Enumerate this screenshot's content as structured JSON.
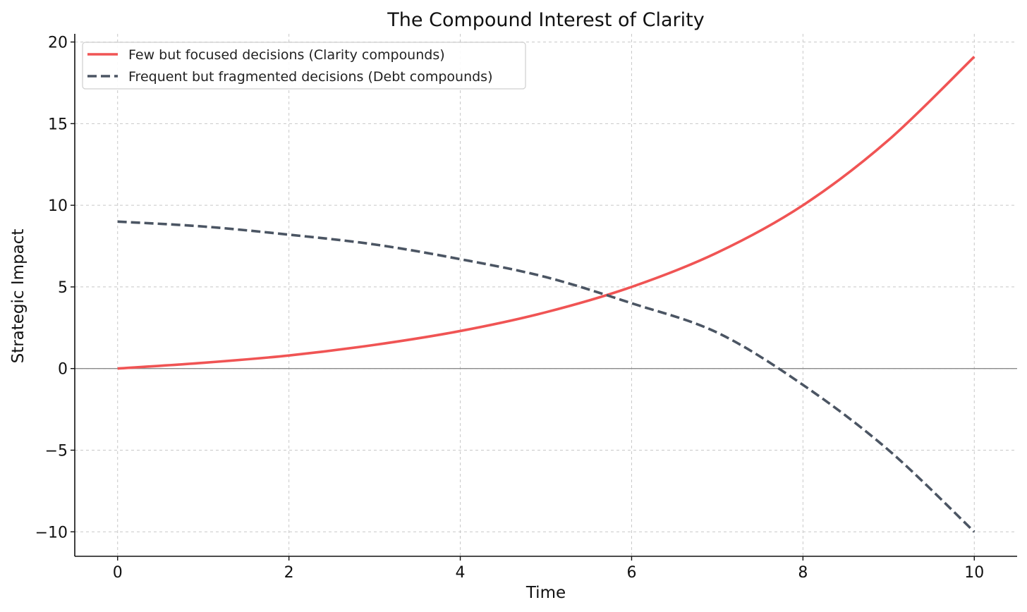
{
  "chart_data": {
    "type": "line",
    "title": "The Compound Interest of Clarity",
    "xlabel": "Time",
    "ylabel": "Strategic Impact",
    "xlim": [
      -0.5,
      10.5
    ],
    "ylim": [
      -11.5,
      20.5
    ],
    "x_ticks": [
      0,
      2,
      4,
      6,
      8,
      10
    ],
    "y_ticks": [
      -10,
      -5,
      0,
      5,
      10,
      15,
      20
    ],
    "y_tick_labels": [
      "−10",
      "−5",
      "0",
      "5",
      "10",
      "15",
      "20"
    ],
    "grid": true,
    "grid_style": "dashed",
    "zero_line": true,
    "legend_position": "upper-left",
    "series": [
      {
        "name": "Few but focused decisions (Clarity compounds)",
        "color": "#f05454",
        "style": "solid",
        "x": [
          0,
          1,
          2,
          3,
          4,
          5,
          6,
          7,
          8,
          9,
          10
        ],
        "y": [
          0,
          0.35,
          0.8,
          1.45,
          2.3,
          3.45,
          5.0,
          7.1,
          10.0,
          14.0,
          19.1
        ]
      },
      {
        "name": "Frequent but fragmented decisions (Debt compounds)",
        "color": "#4b5563",
        "style": "dashed",
        "x": [
          0,
          1,
          2,
          3,
          4,
          5,
          6,
          7,
          8,
          9,
          10
        ],
        "y": [
          9.0,
          8.7,
          8.2,
          7.6,
          6.7,
          5.6,
          4.0,
          2.2,
          -1.0,
          -5.0,
          -10.0
        ]
      }
    ]
  }
}
